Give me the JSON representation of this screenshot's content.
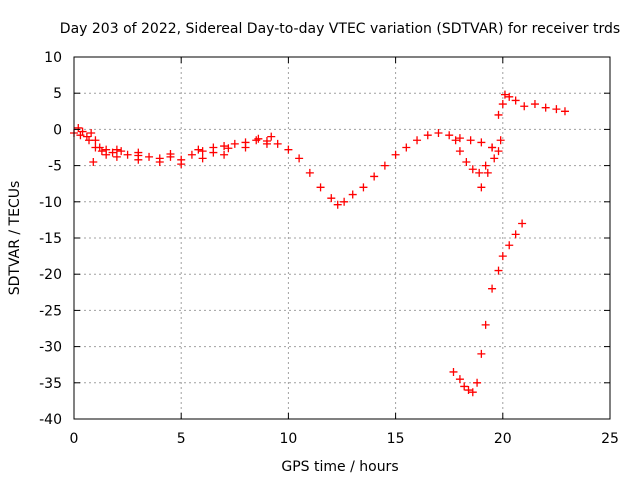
{
  "chart_data": {
    "type": "scatter",
    "title": "Day 203 of 2022, Sidereal Day-to-day VTEC variation (SDTVAR) for receiver trds",
    "xlabel": "GPS time / hours",
    "ylabel": "SDTVAR / TECUs",
    "xlim": [
      0,
      25
    ],
    "ylim": [
      -40,
      10
    ],
    "xticks": [
      "0",
      "5",
      "10",
      "15",
      "20",
      "25"
    ],
    "yticks": [
      "10",
      "5",
      "0",
      "-5",
      "-10",
      "-15",
      "-20",
      "-25",
      "-30",
      "-35",
      "-40"
    ],
    "grid": true,
    "marker": "plus",
    "series": [
      {
        "name": "SDTVAR",
        "color": "#ff0000",
        "x": [
          0.0,
          0.2,
          0.4,
          0.6,
          0.8,
          1.0,
          1.2,
          1.5,
          1.8,
          2.0,
          2.5,
          3.0,
          3.5,
          4.0,
          4.5,
          5.0,
          5.5,
          6.0,
          6.5,
          7.0,
          7.5,
          8.0,
          8.5,
          9.0,
          9.5,
          10.0,
          10.5,
          11.0,
          11.5,
          12.0,
          12.3,
          12.6,
          13.0,
          13.5,
          14.0,
          14.5,
          15.0,
          15.5,
          16.0,
          16.5,
          17.0,
          17.5,
          18.0,
          18.5,
          19.0,
          19.5,
          19.8,
          20.0,
          20.3,
          20.6,
          21.0,
          21.5,
          22.0,
          22.5,
          22.9,
          0.3,
          0.7,
          1.0,
          1.3,
          2.0,
          3.0,
          4.0,
          5.0,
          6.0,
          7.0,
          8.0,
          9.0,
          0.9,
          1.5,
          2.2,
          3.0,
          4.5,
          5.8,
          6.5,
          7.2,
          8.6,
          9.2,
          17.8,
          18.0,
          18.3,
          18.6,
          18.9,
          19.2,
          19.5,
          19.8,
          20.1,
          19.0,
          19.3,
          19.6,
          19.9,
          17.7,
          18.0,
          18.2,
          18.4,
          18.6,
          18.8,
          19.0,
          19.2,
          19.5,
          19.8,
          20.0,
          20.3,
          20.6,
          20.9
        ],
        "y": [
          -0.5,
          0.2,
          -0.3,
          -1.0,
          -0.5,
          -1.5,
          -2.5,
          -2.8,
          -3.2,
          -2.8,
          -3.5,
          -3.2,
          -3.8,
          -4.0,
          -3.8,
          -4.2,
          -3.5,
          -3.0,
          -2.5,
          -2.3,
          -2.0,
          -1.8,
          -1.5,
          -1.6,
          -2.0,
          -2.8,
          -4.0,
          -6.0,
          -8.0,
          -9.5,
          -10.4,
          -10.0,
          -9.0,
          -8.0,
          -6.5,
          -5.0,
          -3.5,
          -2.5,
          -1.5,
          -0.8,
          -0.5,
          -0.8,
          -1.2,
          -1.5,
          -1.8,
          -2.5,
          -3.0,
          3.5,
          4.5,
          4.0,
          3.2,
          3.5,
          3.0,
          2.8,
          2.5,
          -0.8,
          -1.5,
          -2.5,
          -3.0,
          -3.8,
          -4.2,
          -4.5,
          -4.8,
          -4.0,
          -3.5,
          -2.5,
          -2.0,
          -4.5,
          -3.5,
          -3.0,
          -3.6,
          -3.4,
          -2.8,
          -3.2,
          -2.6,
          -1.3,
          -1.0,
          -1.5,
          -3.0,
          -4.5,
          -5.5,
          -6.0,
          -5.0,
          -2.5,
          2.0,
          4.8,
          -8.0,
          -6.0,
          -4.0,
          -1.5,
          -33.5,
          -34.5,
          -35.5,
          -36.0,
          -36.3,
          -35.0,
          -31.0,
          -27.0,
          -22.0,
          -19.5,
          -17.5,
          -16.0,
          -14.5,
          -13.0
        ]
      }
    ]
  }
}
